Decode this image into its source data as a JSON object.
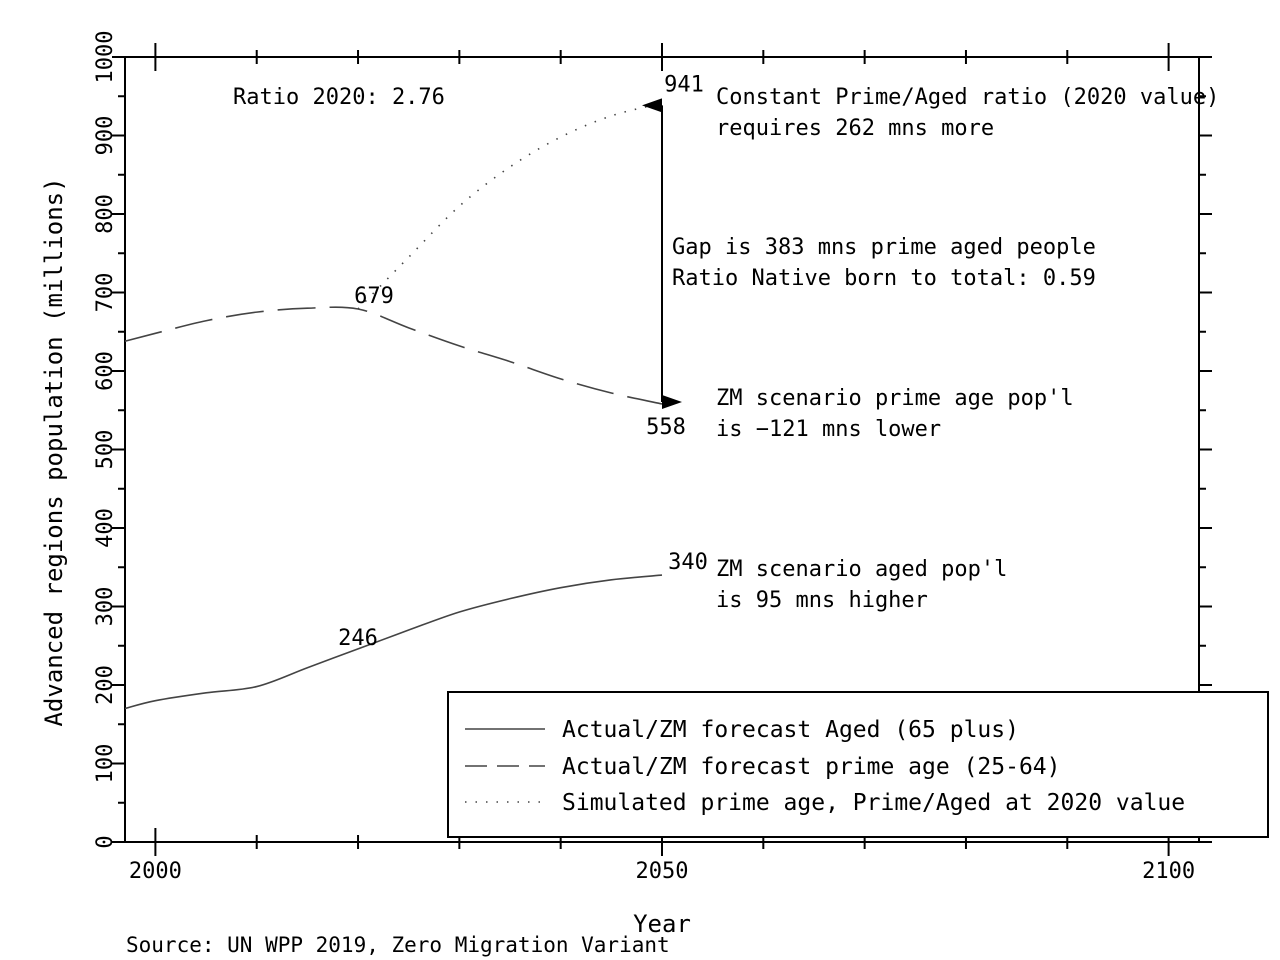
{
  "chart_data": {
    "type": "line",
    "title": "",
    "xlabel": "Year",
    "ylabel": "Advanced regions population (millions)",
    "xlim": [
      1997,
      2103
    ],
    "ylim": [
      0,
      1000
    ],
    "xticks": [
      2000,
      2050,
      2100
    ],
    "yticks": [
      0,
      100,
      200,
      300,
      400,
      500,
      600,
      700,
      800,
      900,
      1000
    ],
    "grid": false,
    "legend_position": "bottom-right",
    "series": [
      {
        "name": "Actual/ZM forecast Aged (65 plus)",
        "style": "solid",
        "x": [
          1997,
          2000,
          2005,
          2010,
          2015,
          2020,
          2025,
          2030,
          2035,
          2040,
          2045,
          2050
        ],
        "y": [
          170,
          180,
          190,
          198,
          222,
          246,
          270,
          293,
          310,
          324,
          334,
          340
        ]
      },
      {
        "name": "Actual/ZM forecast prime age (25-64)",
        "style": "dashed",
        "x": [
          1997,
          2000,
          2005,
          2010,
          2015,
          2020,
          2025,
          2030,
          2035,
          2040,
          2045,
          2050
        ],
        "y": [
          638,
          648,
          664,
          675,
          680,
          679,
          655,
          632,
          612,
          590,
          572,
          558
        ]
      },
      {
        "name": "Simulated prime age, Prime/Aged at 2020 value",
        "style": "dotted",
        "x": [
          2020,
          2025,
          2030,
          2035,
          2040,
          2045,
          2050
        ],
        "y": [
          679,
          745,
          810,
          860,
          898,
          925,
          941
        ]
      }
    ],
    "point_labels": [
      {
        "text": "246",
        "x": 2020,
        "y": 246
      },
      {
        "text": "340",
        "x": 2050,
        "y": 340
      },
      {
        "text": "679",
        "x": 2020,
        "y": 679
      },
      {
        "text": "558",
        "x": 2050,
        "y": 558
      },
      {
        "text": "941",
        "x": 2050,
        "y": 941
      }
    ],
    "annotations": {
      "ratio_2020": "Ratio 2020: 2.76",
      "constant_ratio_line1": "Constant Prime/Aged ratio (2020 value)",
      "constant_ratio_line2": "requires 262 mns more",
      "gap_line1": "Gap is 383 mns prime aged people",
      "gap_line2": "Ratio Native born to total: 0.59",
      "prime_lower_line1": "ZM scenario prime age pop'l",
      "prime_lower_line2": "is −121 mns lower",
      "aged_higher_line1": "ZM scenario aged pop'l",
      "aged_higher_line2": "is 95 mns higher"
    },
    "arrow": {
      "x": 2050,
      "y_from": 558,
      "y_to": 941
    }
  },
  "source": "Source:  UN WPP 2019, Zero Migration Variant"
}
